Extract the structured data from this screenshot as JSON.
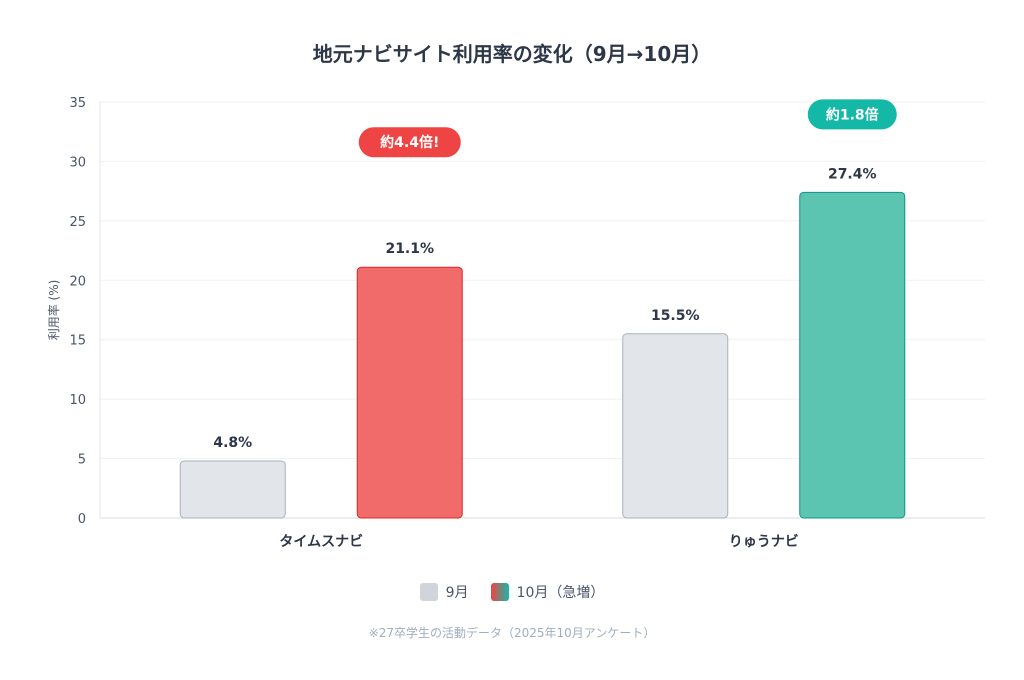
{
  "chart_data": {
    "type": "bar",
    "title": "地元ナビサイト利用率の変化（9月→10月）",
    "ylabel": "利用率 (%)",
    "xlabel": "",
    "ylim": [
      0,
      35
    ],
    "yticks": [
      0,
      5,
      10,
      15,
      20,
      25,
      30,
      35
    ],
    "categories": [
      "タイムスナビ",
      "りゅうナビ"
    ],
    "series": [
      {
        "name": "9月",
        "values": [
          4.8,
          15.5
        ],
        "labels": [
          "4.8%",
          "15.5%"
        ],
        "color": "#e2e5e9"
      },
      {
        "name": "10月（急増）",
        "values": [
          21.1,
          27.4
        ],
        "labels": [
          "21.1%",
          "27.4%"
        ],
        "colors": [
          "#f26b6b",
          "#5bc5b2"
        ]
      }
    ],
    "annotations": [
      {
        "category": "タイムスナビ",
        "text": "約4.4倍!",
        "color": "#ef4444"
      },
      {
        "category": "りゅうナビ",
        "text": "約1.8倍",
        "color": "#14b8a6"
      }
    ],
    "legend_position": "bottom",
    "grid": true
  },
  "note": "※27卒学生の活動データ（2025年10月アンケート）"
}
